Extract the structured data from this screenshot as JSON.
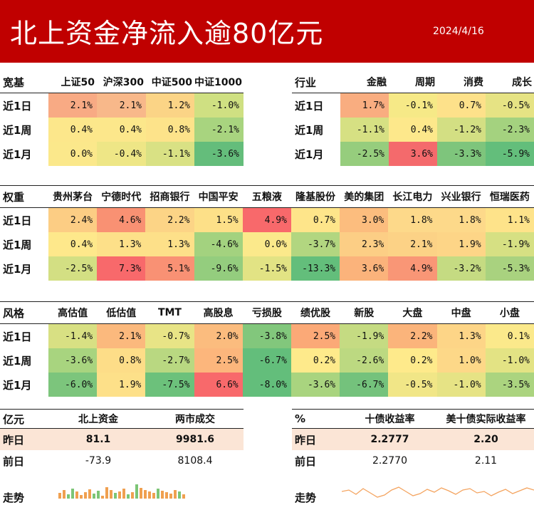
{
  "header": {
    "title": "北上资金净流入逾80亿元",
    "date": "2024/4/16",
    "bg_color": "#c00000"
  },
  "broad": {
    "label": "宽基",
    "columns": [
      "上证50",
      "沪深300",
      "中证500",
      "中证1000"
    ],
    "rows": [
      {
        "label": "近1日",
        "values": [
          "2.1%",
          "2.1%",
          "1.2%",
          "-1.0%"
        ],
        "colors": [
          "#f8aa84",
          "#f8b88a",
          "#fbd486",
          "#cfe082"
        ]
      },
      {
        "label": "近1周",
        "values": [
          "0.4%",
          "0.4%",
          "0.8%",
          "-2.1%"
        ],
        "colors": [
          "#fce78b",
          "#fce78b",
          "#fde38a",
          "#a8d47f"
        ]
      },
      {
        "label": "近1月",
        "values": [
          "0.0%",
          "-0.4%",
          "-1.1%",
          "-3.6%"
        ],
        "colors": [
          "#fbe88b",
          "#eee686",
          "#d9e184",
          "#64bd7b"
        ]
      }
    ]
  },
  "industry": {
    "label": "行业",
    "columns": [
      "金融",
      "周期",
      "消费",
      "成长"
    ],
    "rows": [
      {
        "label": "近1日",
        "values": [
          "1.7%",
          "-0.1%",
          "0.7%",
          "-0.5%"
        ],
        "colors": [
          "#f9ad80",
          "#f6e987",
          "#fde18a",
          "#e6e384"
        ]
      },
      {
        "label": "近1周",
        "values": [
          "-1.1%",
          "0.4%",
          "-1.2%",
          "-2.3%"
        ],
        "colors": [
          "#d6e083",
          "#fde88b",
          "#d3df83",
          "#a4d27f"
        ]
      },
      {
        "label": "近1月",
        "values": [
          "-2.5%",
          "3.6%",
          "-3.3%",
          "-5.9%"
        ],
        "colors": [
          "#96cd7d",
          "#f46a6c",
          "#7ec57c",
          "#63be7b"
        ]
      }
    ]
  },
  "weight": {
    "label": "权重",
    "columns": [
      "贵州茅台",
      "宁德时代",
      "招商银行",
      "中国平安",
      "五粮液",
      "隆基股份",
      "美的集团",
      "长江电力",
      "兴业银行",
      "恒瑞医药"
    ],
    "rows": [
      {
        "label": "近1日",
        "values": [
          "2.4%",
          "4.6%",
          "2.2%",
          "1.5%",
          "4.9%",
          "0.7%",
          "3.0%",
          "1.8%",
          "1.8%",
          "1.1%"
        ],
        "colors": [
          "#fccd84",
          "#f99173",
          "#fcd486",
          "#fde088",
          "#f8696b",
          "#fee58a",
          "#fcbd7e",
          "#fdd98a",
          "#fdd98a",
          "#fee38a"
        ]
      },
      {
        "label": "近1周",
        "values": [
          "0.4%",
          "1.3%",
          "1.3%",
          "-4.6%",
          "0.0%",
          "-3.7%",
          "2.3%",
          "2.1%",
          "1.9%",
          "-1.9%"
        ],
        "colors": [
          "#fee88b",
          "#fde089",
          "#fde089",
          "#a3d27f",
          "#fbe98b",
          "#b2d680",
          "#fcce85",
          "#fcd286",
          "#fdd587",
          "#d6e083"
        ]
      },
      {
        "label": "近1月",
        "values": [
          "-2.5%",
          "7.3%",
          "5.1%",
          "-9.6%",
          "-1.5%",
          "-13.3%",
          "3.6%",
          "4.9%",
          "-3.2%",
          "-5.3%"
        ],
        "colors": [
          "#d3df83",
          "#f8696b",
          "#f99174",
          "#94cd7e",
          "#e2e384",
          "#63be7b",
          "#fbb37b",
          "#f99676",
          "#c5db82",
          "#a9d27f"
        ]
      }
    ]
  },
  "style": {
    "label": "风格",
    "columns": [
      "高估值",
      "低估值",
      "TMT",
      "高股息",
      "亏损股",
      "绩优股",
      "新股",
      "大盘",
      "中盘",
      "小盘"
    ],
    "rows": [
      {
        "label": "近1日",
        "values": [
          "-1.4%",
          "2.1%",
          "-0.7%",
          "2.0%",
          "-3.8%",
          "2.5%",
          "-1.9%",
          "2.2%",
          "1.3%",
          "0.1%"
        ],
        "colors": [
          "#d8e083",
          "#fbb97d",
          "#e8e486",
          "#fbbc7e",
          "#82c77c",
          "#fba977",
          "#c5db82",
          "#fbb47b",
          "#fdd587",
          "#fbe98b"
        ]
      },
      {
        "label": "近1周",
        "values": [
          "-3.6%",
          "0.8%",
          "-2.7%",
          "2.5%",
          "-6.7%",
          "0.2%",
          "-2.6%",
          "0.2%",
          "1.0%",
          "-1.0%"
        ],
        "colors": [
          "#a8d47f",
          "#fddd88",
          "#b9d881",
          "#fcb67c",
          "#63be7b",
          "#feea8b",
          "#bcd981",
          "#feea8b",
          "#fdd888",
          "#e3e384"
        ]
      },
      {
        "label": "近1月",
        "values": [
          "-6.0%",
          "1.9%",
          "-7.5%",
          "6.6%",
          "-8.0%",
          "-3.6%",
          "-6.7%",
          "-0.5%",
          "-1.0%",
          "-3.5%"
        ],
        "colors": [
          "#7cc57c",
          "#fde089",
          "#6cc17b",
          "#f8696b",
          "#63be7b",
          "#a9d47f",
          "#74c27c",
          "#f1e687",
          "#e6e385",
          "#abd47f"
        ]
      }
    ]
  },
  "flows": {
    "label": "亿元",
    "columns": [
      "北上资金",
      "两市成交"
    ],
    "rows": [
      {
        "label": "昨日",
        "values": [
          "81.1",
          "9981.6"
        ]
      },
      {
        "label": "前日",
        "values": [
          "-73.9",
          "8108.4"
        ]
      }
    ],
    "trend_label": "走势"
  },
  "rates": {
    "label": "%",
    "columns": [
      "十债收益率",
      "美十债实际收益率"
    ],
    "rows": [
      {
        "label": "昨日",
        "values": [
          "2.2777",
          "2.20"
        ]
      },
      {
        "label": "前日",
        "values": [
          "2.2770",
          "2.11"
        ]
      }
    ],
    "trend_label": "走势"
  },
  "colors": {
    "positive_bar": "#f0a050",
    "negative_bar": "#7cc576",
    "line": "#f4a460",
    "row_highlight": "#fbe5d6"
  }
}
